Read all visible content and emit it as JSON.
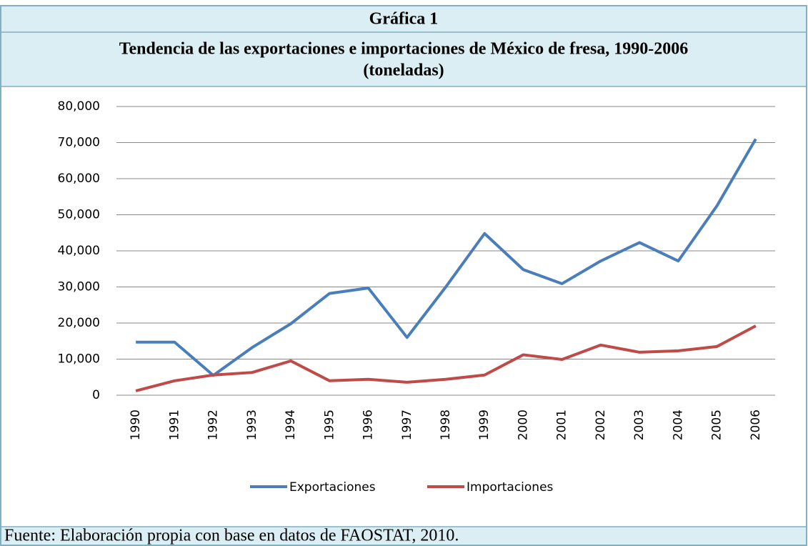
{
  "chart_data": {
    "type": "line",
    "figure_label": "Gráfica 1",
    "title": "Tendencia de las exportaciones e importaciones de México de fresa, 1990-2006",
    "subtitle": "(toneladas)",
    "source": "Fuente: Elaboración propia con base en datos de FAOSTAT, 2010.",
    "categories": [
      "1990",
      "1991",
      "1992",
      "1993",
      "1994",
      "1995",
      "1996",
      "1997",
      "1998",
      "1999",
      "2000",
      "2001",
      "2002",
      "2003",
      "2004",
      "2005",
      "2006"
    ],
    "series": [
      {
        "name": "Exportaciones",
        "color": "#4a7ebb",
        "values": [
          14700,
          14700,
          5500,
          13200,
          19800,
          28200,
          29700,
          16000,
          30000,
          44800,
          34800,
          30900,
          37200,
          42300,
          37200,
          52500,
          71000
        ]
      },
      {
        "name": "Importaciones",
        "color": "#be4b48",
        "values": [
          1200,
          4000,
          5600,
          6300,
          9500,
          4000,
          4400,
          3600,
          4400,
          5600,
          11200,
          9900,
          13900,
          11900,
          12300,
          13500,
          19200
        ]
      }
    ],
    "ylim": [
      0,
      80000
    ],
    "yticks": [
      0,
      {
        "value": 10000,
        "label": "10,000"
      },
      {
        "value": 20000,
        "label": "20,000"
      },
      {
        "value": 30000,
        "label": "30,000"
      },
      {
        "value": 40000,
        "label": "40,000"
      },
      {
        "value": 50000,
        "label": "50,000"
      },
      {
        "value": 60000,
        "label": "60,000"
      },
      {
        "value": 70000,
        "label": "70,000"
      },
      {
        "value": 80000,
        "label": "80,000"
      }
    ],
    "grid": true,
    "legend": "bottom"
  }
}
